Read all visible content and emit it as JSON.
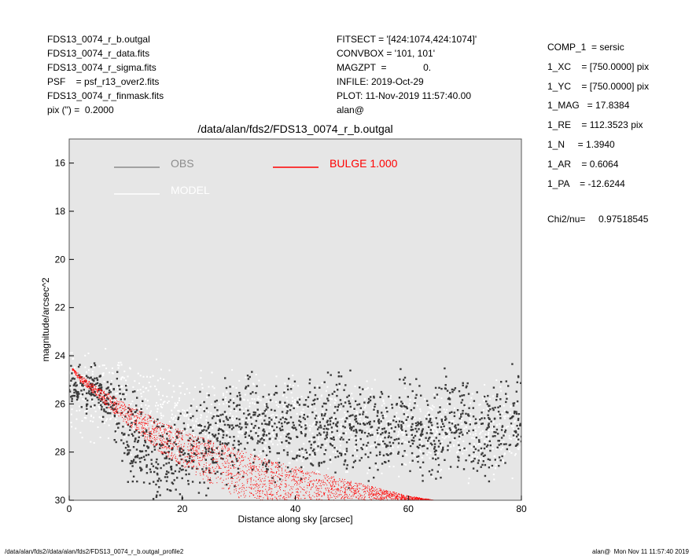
{
  "header_left": [
    "FDS13_0074_r_b.outgal",
    "FDS13_0074_r_data.fits",
    "FDS13_0074_r_sigma.fits",
    "PSF    = psf_r13_over2.fits",
    "FDS13_0074_r_finmask.fits",
    "pix (\") =  0.2000"
  ],
  "header_mid": [
    "FITSECT = '[424:1074,424:1074]'",
    "CONVBOX = '101, 101'",
    "MAGZPT  =              0.",
    "INFILE: 2019-Oct-29",
    "PLOT: 11-Nov-2019 11:57:40.00",
    "alan@"
  ],
  "header_right": [
    "COMP_1  = sersic",
    "1_XC    = [750.0000] pix",
    "1_YC    = [750.0000] pix",
    "1_MAG   = 17.8384",
    "1_RE    = 112.3523 pix",
    "1_N     = 1.3940",
    "1_AR    = 0.6064",
    "1_PA    = -12.6244"
  ],
  "chi": {
    "label": "Chi2/nu=",
    "value": "0.97518545"
  },
  "footer": {
    "left": "/data/alan/fds2//data/alan/fds2/FDS13_0074_r_b.outgal_profile2",
    "right": "alan@  Mon Nov 11 11:57:40 2019"
  },
  "chart_data": {
    "type": "scatter",
    "title": "/data/alan/fds2/FDS13_0074_r_b.outgal",
    "xlabel": "Distance along sky [arcsec]",
    "ylabel": "magnitude/arcsec^2",
    "xlim": [
      0,
      80
    ],
    "ylim": [
      30,
      15
    ],
    "xticks": [
      0,
      20,
      40,
      60,
      80
    ],
    "yticks": [
      16,
      18,
      20,
      22,
      24,
      26,
      28,
      30
    ],
    "grid": false,
    "legend": [
      {
        "label": "OBS",
        "color": "#8c8c8c"
      },
      {
        "label": "MODEL",
        "color": "#ffffff"
      },
      {
        "label": "BULGE  1.000",
        "color": "#ff0000"
      }
    ],
    "series": [
      {
        "name": "OBS",
        "color": "#3a3a3a",
        "x": [
          0.4,
          1.2,
          2.0,
          3.1,
          4.5,
          6.0,
          7.8,
          9.5,
          11.2,
          13.0,
          15.0,
          17.5,
          20.0,
          23.0,
          26.0,
          29.0,
          32.0,
          35.0,
          38.0,
          41.0,
          44.0,
          47.0,
          50.0,
          53.0,
          56.0,
          59.0,
          62.0,
          65.0,
          68.0,
          71.0,
          74.0,
          77.0,
          79.5
        ],
        "y": [
          25.3,
          25.5,
          25.2,
          25.6,
          25.1,
          25.8,
          26.0,
          26.6,
          27.2,
          27.8,
          28.3,
          28.5,
          28.2,
          27.6,
          27.3,
          27.2,
          27.0,
          27.1,
          26.9,
          27.0,
          27.2,
          26.8,
          27.0,
          26.9,
          27.3,
          26.7,
          27.1,
          27.2,
          26.6,
          27.0,
          27.4,
          26.8,
          27.0
        ]
      },
      {
        "name": "MODEL",
        "color": "#ffffff",
        "x": [
          1,
          5,
          10,
          15,
          20,
          25,
          30,
          35,
          40,
          45,
          50,
          55,
          60,
          65,
          70,
          75,
          80
        ],
        "y": [
          25.4,
          25.7,
          26.0,
          26.2,
          26.3,
          26.5,
          26.6,
          26.7,
          26.8,
          26.9,
          27.0,
          27.0,
          27.1,
          27.1,
          27.2,
          27.2,
          27.3
        ]
      },
      {
        "name": "BULGE  1.000",
        "color": "#ff0000",
        "x": [
          0.5,
          2,
          5,
          8,
          12,
          16,
          20,
          25,
          30,
          35,
          40,
          45,
          50,
          55,
          60,
          65
        ],
        "y_upper": [
          24.5,
          24.8,
          25.3,
          25.7,
          26.2,
          26.7,
          27.1,
          27.5,
          27.9,
          28.3,
          28.6,
          28.9,
          29.2,
          29.5,
          29.8,
          30.0
        ],
        "y_lower": [
          24.6,
          25.1,
          25.7,
          26.4,
          27.2,
          28.0,
          28.6,
          29.3,
          29.9,
          30.0,
          30.0,
          30.0,
          30.0,
          30.0,
          30.0,
          30.0
        ]
      }
    ]
  }
}
